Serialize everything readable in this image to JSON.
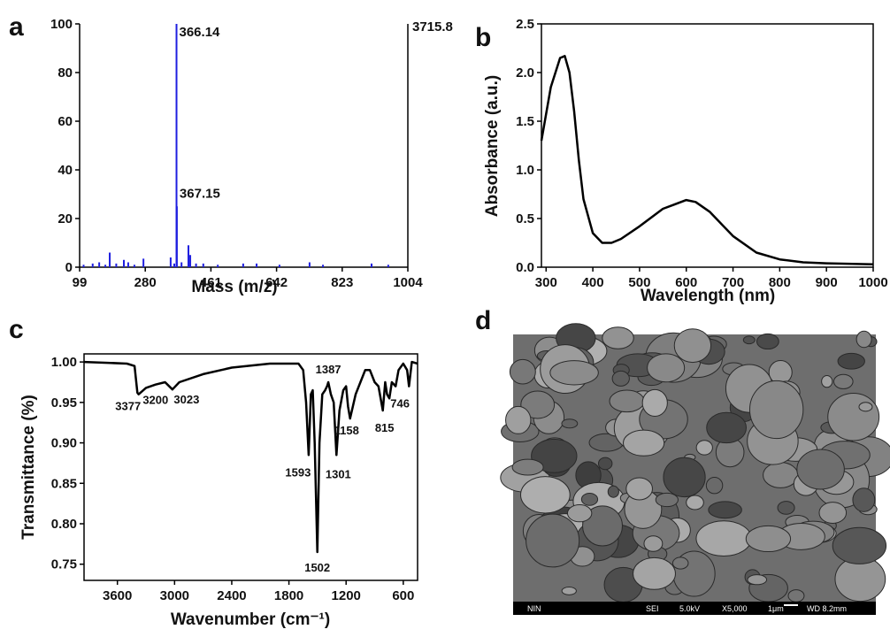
{
  "chart_data": [
    {
      "type": "stem",
      "panel_label": "a",
      "x_label": "Mass (m/z)",
      "max_intensity_label": "3715.8",
      "color": "#1f1fe0",
      "xlim": [
        99,
        1004
      ],
      "xticks": [
        99,
        280,
        461,
        642,
        823,
        1004
      ],
      "ylim": [
        0,
        100
      ],
      "yticks": [
        0,
        20,
        40,
        60,
        80,
        100
      ],
      "x": [
        110,
        135,
        153,
        170,
        182,
        200,
        221,
        233,
        250,
        275,
        350,
        360,
        366.14,
        367.15,
        380,
        399,
        404,
        420,
        440,
        480,
        550,
        587,
        650,
        733,
        770,
        904,
        950
      ],
      "values": [
        1,
        1.5,
        2,
        1,
        6,
        1.5,
        3,
        2,
        1,
        3.5,
        4,
        1.5,
        100,
        25,
        2,
        9,
        5,
        1.5,
        1.5,
        1,
        1.5,
        1.5,
        1,
        2,
        1,
        1.5,
        1
      ],
      "annotations": [
        {
          "x": 366.14,
          "y": 100
        },
        {
          "x": 367.15,
          "y": 25
        }
      ]
    },
    {
      "type": "line",
      "panel_label": "b",
      "x_label": "Wavelength (nm)",
      "y_label": "Absorbance (a.u.)",
      "color": "#000000",
      "xlim": [
        290,
        1000
      ],
      "xticks": [
        300,
        400,
        500,
        600,
        700,
        800,
        900,
        1000
      ],
      "ylim": [
        0,
        2.5
      ],
      "yticks": [
        {
          "value": 0,
          "label": "0.0"
        },
        0.5,
        {
          "value": 1,
          "label": "1.0"
        },
        1.5,
        {
          "value": 2,
          "label": "2.0"
        },
        2.5
      ],
      "x": [
        290,
        310,
        330,
        340,
        350,
        360,
        370,
        380,
        400,
        420,
        440,
        460,
        500,
        550,
        600,
        620,
        650,
        700,
        750,
        800,
        850,
        900,
        1000
      ],
      "values": [
        1.3,
        1.85,
        2.15,
        2.17,
        2.0,
        1.6,
        1.1,
        0.7,
        0.35,
        0.25,
        0.25,
        0.29,
        0.42,
        0.6,
        0.69,
        0.67,
        0.57,
        0.32,
        0.15,
        0.08,
        0.05,
        0.04,
        0.03
      ]
    },
    {
      "type": "line",
      "panel_label": "c",
      "x_label": "Wavenumber (cm⁻¹)",
      "y_label": "Transmittance (%)",
      "color": "#000000",
      "xlim": [
        3950,
        450
      ],
      "xticks": [
        3600,
        3000,
        2400,
        1800,
        1200,
        600
      ],
      "ylim": [
        0.73,
        1.01
      ],
      "yticks": [
        0.75,
        {
          "value": 0.8,
          "label": "0.80"
        },
        0.85,
        {
          "value": 0.9,
          "label": "0.90"
        },
        0.95,
        {
          "value": 1,
          "label": "1.00"
        }
      ],
      "x": [
        3950,
        3700,
        3500,
        3420,
        3390,
        3377,
        3300,
        3200,
        3100,
        3023,
        2950,
        2700,
        2400,
        2000,
        1700,
        1650,
        1620,
        1593,
        1570,
        1550,
        1530,
        1502,
        1480,
        1450,
        1420,
        1400,
        1387,
        1360,
        1330,
        1301,
        1270,
        1230,
        1200,
        1180,
        1158,
        1100,
        1050,
        1000,
        950,
        900,
        860,
        815,
        790,
        770,
        746,
        720,
        680,
        650,
        600,
        560,
        540,
        510,
        450
      ],
      "values": [
        1.0,
        0.999,
        0.998,
        0.995,
        0.962,
        0.96,
        0.968,
        0.972,
        0.975,
        0.966,
        0.975,
        0.985,
        0.993,
        0.998,
        0.998,
        0.99,
        0.95,
        0.885,
        0.96,
        0.965,
        0.9,
        0.765,
        0.9,
        0.96,
        0.965,
        0.97,
        0.975,
        0.96,
        0.95,
        0.885,
        0.94,
        0.965,
        0.97,
        0.945,
        0.93,
        0.96,
        0.975,
        0.99,
        0.99,
        0.975,
        0.97,
        0.94,
        0.975,
        0.96,
        0.955,
        0.975,
        0.97,
        0.99,
        0.998,
        0.99,
        0.97,
        1.0,
        0.998
      ],
      "annotations": [
        {
          "x": 3377,
          "y": 0.96
        },
        {
          "x": 3200,
          "y": 0.972
        },
        {
          "x": 3023,
          "y": 0.966
        },
        {
          "x": 1593,
          "y": 0.885
        },
        {
          "x": 1387,
          "y": 0.975
        },
        {
          "x": 1502,
          "y": 0.765
        },
        {
          "x": 1301,
          "y": 0.885
        },
        {
          "x": 1158,
          "y": 0.93
        },
        {
          "x": 815,
          "y": 0.94
        },
        {
          "x": 746,
          "y": 0.955
        }
      ]
    }
  ],
  "sem_image": {
    "panel_label": "d",
    "info": [
      "NIN",
      "SEI",
      "5.0kV",
      "X5,000",
      "1μm",
      "WD 8.2mm"
    ]
  }
}
